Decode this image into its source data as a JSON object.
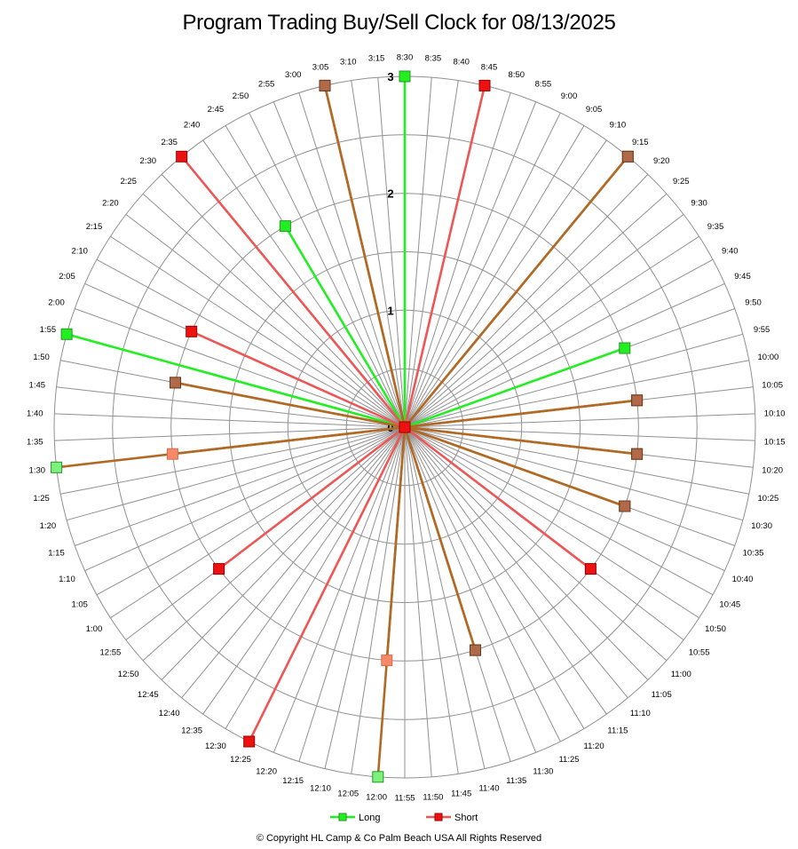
{
  "title": "Program Trading Buy/Sell Clock  for  08/13/2025",
  "copyright": "© Copyright  HL Camp & Co  Palm Beach  USA  All Rights Reserved",
  "chart_data": {
    "type": "radar",
    "rlim": [
      0,
      3
    ],
    "ring_ticks": [
      "0",
      "1",
      "2",
      "3"
    ],
    "grid": true,
    "legend_position": "bottom",
    "categories": [
      "8:30",
      "8:35",
      "8:40",
      "8:45",
      "8:50",
      "8:55",
      "9:00",
      "9:05",
      "9:10",
      "9:15",
      "9:20",
      "9:25",
      "9:30",
      "9:35",
      "9:40",
      "9:45",
      "9:50",
      "9:55",
      "10:00",
      "10:05",
      "10:10",
      "10:15",
      "10:20",
      "10:25",
      "10:30",
      "10:35",
      "10:40",
      "10:45",
      "10:50",
      "10:55",
      "11:00",
      "11:05",
      "11:10",
      "11:15",
      "11:20",
      "11:25",
      "11:30",
      "11:35",
      "11:40",
      "11:45",
      "11:50",
      "11:55",
      "12:00",
      "12:05",
      "12:10",
      "12:15",
      "12:20",
      "12:25",
      "12:30",
      "12:35",
      "12:40",
      "12:45",
      "12:50",
      "12:55",
      "1:00",
      "1:05",
      "1:10",
      "1:15",
      "1:20",
      "1:25",
      "1:30",
      "1:35",
      "1:40",
      "1:45",
      "1:50",
      "1:55",
      "2:00",
      "2:05",
      "2:10",
      "2:15",
      "2:20",
      "2:25",
      "2:30",
      "2:35",
      "2:40",
      "2:45",
      "2:50",
      "2:55",
      "3:00",
      "3:05",
      "3:10",
      "3:15"
    ],
    "series": [
      {
        "name": "Long",
        "color": "#22ee22",
        "values": [
          3,
          0,
          0,
          0,
          0,
          0,
          0,
          0,
          0,
          3,
          0,
          0,
          0,
          0,
          0,
          0,
          2,
          0,
          0,
          2,
          0,
          0,
          2,
          0,
          0,
          2,
          0,
          0,
          0,
          0,
          0,
          0,
          0,
          0,
          0,
          0,
          0,
          2,
          0,
          0,
          0,
          0,
          3,
          0,
          0,
          0,
          0,
          0,
          0,
          0,
          0,
          0,
          0,
          0,
          0,
          0,
          0,
          0,
          0,
          0,
          3,
          0,
          0,
          0,
          2,
          3,
          0,
          0,
          0,
          0,
          0,
          0,
          0,
          0,
          0,
          2,
          0,
          0,
          0,
          3,
          0,
          0
        ]
      },
      {
        "name": "Short",
        "color": "#ee2222",
        "values": [
          0,
          0,
          0,
          3,
          0,
          0,
          0,
          0,
          0,
          3,
          0,
          0,
          0,
          0,
          0,
          0,
          0,
          0,
          0,
          2,
          0,
          0,
          2,
          0,
          0,
          2,
          0,
          0,
          0,
          2,
          0,
          0,
          0,
          0,
          0,
          0,
          0,
          2,
          0,
          0,
          0,
          0,
          2,
          0,
          0,
          0,
          0,
          3,
          0,
          0,
          0,
          0,
          0,
          2,
          0,
          0,
          0,
          0,
          0,
          0,
          2,
          0,
          0,
          0,
          2,
          0,
          0,
          2,
          0,
          0,
          0,
          0,
          0,
          3,
          0,
          0,
          0,
          0,
          0,
          3,
          0,
          0
        ]
      }
    ]
  },
  "legend": [
    {
      "name": "Long",
      "color": "#22ee22"
    },
    {
      "name": "Short",
      "color": "#ee2222"
    }
  ]
}
